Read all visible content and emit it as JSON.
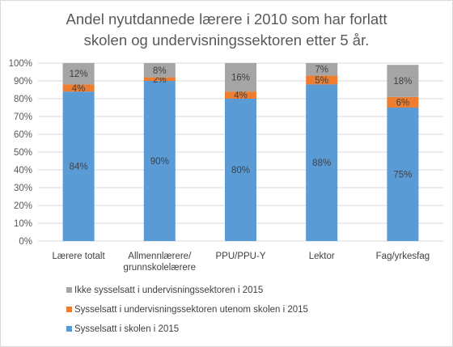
{
  "chart_data": {
    "type": "bar",
    "stacked": true,
    "title": "Andel nyutdannede lærere i 2010 som har forlatt skolen og undervisningssektoren etter 5 år.",
    "title_lines": [
      "Andel nyutdannede lærere i 2010 som har forlatt",
      "skolen og undervisningssektoren etter 5 år."
    ],
    "categories": [
      [
        "Lærere totalt"
      ],
      [
        "Allmennlærere/",
        "grunnskolelærere"
      ],
      [
        "PPU/PPU-Y"
      ],
      [
        "Lektor"
      ],
      [
        "Fag/yrkesfag"
      ]
    ],
    "series": [
      {
        "name": "Sysselsatt i skolen i 2015",
        "color": "#5B9BD5",
        "values": [
          84,
          90,
          80,
          88,
          75
        ],
        "labels": [
          "84%",
          "90%",
          "80%",
          "88%",
          "75%"
        ]
      },
      {
        "name": "Sysselsatt i undervisningssektoren utenom skolen i 2015",
        "color": "#ED7D31",
        "values": [
          4,
          2,
          4,
          5,
          6
        ],
        "labels": [
          "4%",
          "2%",
          "4%",
          "5%",
          "6%"
        ]
      },
      {
        "name": "Ikke sysselsatt i undervisningssektoren i 2015",
        "color": "#A5A5A5",
        "values": [
          12,
          8,
          16,
          7,
          18
        ],
        "labels": [
          "12%",
          "8%",
          "16%",
          "7%",
          "18%"
        ]
      }
    ],
    "ylim": [
      0,
      100
    ],
    "yticks": [
      "0%",
      "10%",
      "20%",
      "30%",
      "40%",
      "50%",
      "60%",
      "70%",
      "80%",
      "90%",
      "100%"
    ],
    "grid": true,
    "legend_position": "bottom",
    "legend_order": [
      2,
      1,
      0
    ]
  }
}
